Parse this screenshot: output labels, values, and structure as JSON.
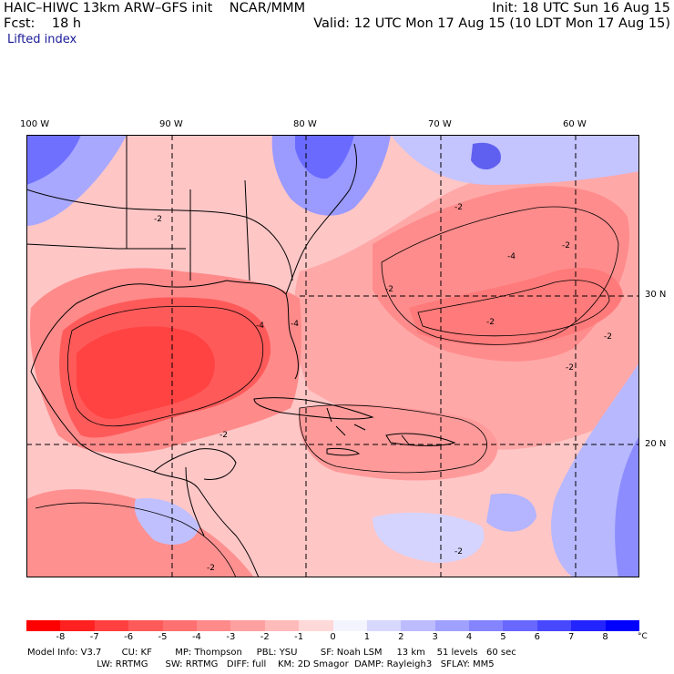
{
  "header": {
    "title_left": "HAIC–HIWC 13km ARW–GFS init    NCAR/MMM",
    "init": "Init: 18 UTC Sun 16 Aug 15",
    "fcst": "Fcst:    18 h",
    "valid": "Valid: 12 UTC Mon 17 Aug 15 (10 LDT Mon 17 Aug 15)",
    "field": "Lifted index"
  },
  "axes": {
    "lon_labels": [
      "100 W",
      "90 W",
      "80 W",
      "70 W",
      "60 W"
    ],
    "lat_labels": [
      "30 N",
      "20 N"
    ]
  },
  "contour_labels": [
    "-2",
    "-2",
    "-2",
    "-4",
    "-2",
    "-4",
    "-2",
    "-2",
    "-2",
    "-2",
    "-2",
    "-4",
    "-2"
  ],
  "colorbar": {
    "ticks": [
      "-8",
      "-7",
      "-6",
      "-5",
      "-4",
      "-3",
      "-2",
      "-1",
      "0",
      "1",
      "2",
      "3",
      "4",
      "5",
      "6",
      "7",
      "8"
    ],
    "unit": "°C",
    "colors": [
      "#ff0000",
      "#ff2020",
      "#ff4040",
      "#ff5a5a",
      "#ff7070",
      "#ff8a8a",
      "#ffa0a0",
      "#ffbaba",
      "#ffd8d8",
      "#f4f4ff",
      "#d8d8ff",
      "#bcbcff",
      "#a0a0ff",
      "#8484ff",
      "#6868ff",
      "#4848ff",
      "#2424ff",
      "#0000ff"
    ]
  },
  "model_info": {
    "line1": "Model Info: V3.7       CU: KF        MP: Thompson     PBL: YSU        SF: Noah LSM     13 km    51 levels   60 sec",
    "line2": "                        LW: RRTMG      SW: RRTMG   DIFF: full    KM: 2D Smagor  DAMP: Rayleigh3   SFLAY: MM5"
  }
}
